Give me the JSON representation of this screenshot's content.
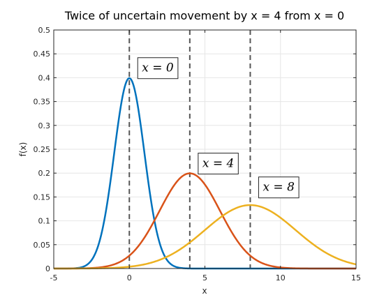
{
  "chart_data": {
    "type": "line",
    "title": "Twice of uncertain movement by x = 4 from x = 0",
    "xlabel": "x",
    "ylabel": "f(x)",
    "xlim": [
      -5,
      15
    ],
    "ylim": [
      0,
      0.5
    ],
    "xticks": [
      -5,
      0,
      5,
      10,
      15
    ],
    "xtick_labels": [
      "-5",
      "0",
      "5",
      "10",
      "15"
    ],
    "yticks": [
      0,
      0.05,
      0.1,
      0.15,
      0.2,
      0.25,
      0.3,
      0.35,
      0.4,
      0.45,
      0.5
    ],
    "ytick_labels": [
      "0",
      "0.05",
      "0.1",
      "0.15",
      "0.2",
      "0.25",
      "0.3",
      "0.35",
      "0.4",
      "0.45",
      "0.5"
    ],
    "grid": true,
    "series": [
      {
        "mean": 0,
        "sd": 1,
        "color": "#0072BD"
      },
      {
        "mean": 4,
        "sd": 2,
        "color": "#D95319"
      },
      {
        "mean": 8,
        "sd": 3,
        "color": "#EDB120"
      }
    ],
    "vlines": [
      0,
      4,
      8
    ],
    "annotations": [
      {
        "text": "x = 0",
        "x": 0,
        "y": 0.42
      },
      {
        "text": "x = 4",
        "x": 4,
        "y": 0.22
      },
      {
        "text": "x = 8",
        "x": 8,
        "y": 0.17
      }
    ]
  }
}
